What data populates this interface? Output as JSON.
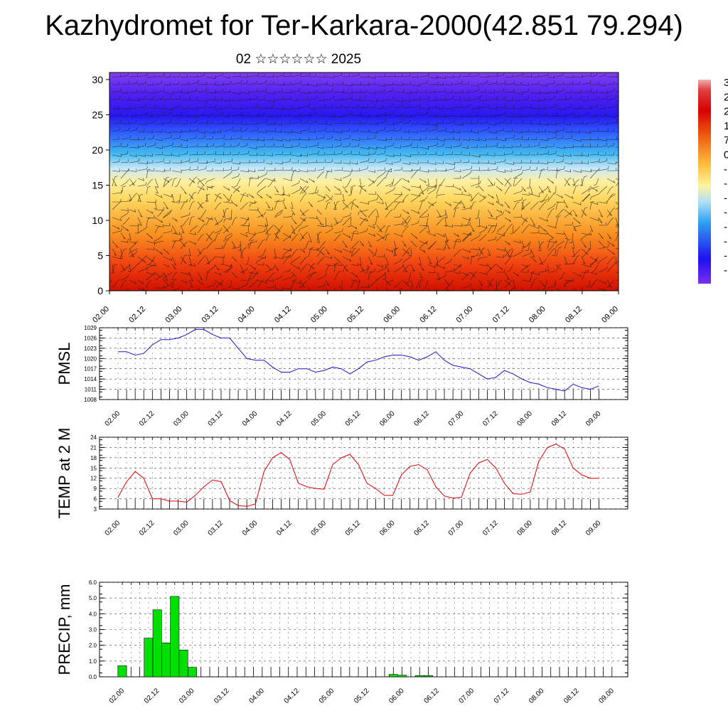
{
  "title": "Kazhydromet for Ter-Karkara-2000(42.851 79.294)",
  "subtitle": "02 ☆☆☆☆☆☆ 2025",
  "colors": {
    "pressure_line": "#1a1acc",
    "temp_line": "#dd0000",
    "precip_bar": "#00e000"
  },
  "chart_data": [
    {
      "type": "heatmap",
      "name_hint": "wind-temperature cross section",
      "x_ticks": [
        "02.00",
        "02.12",
        "03.00",
        "03.12",
        "04.00",
        "04.12",
        "05.00",
        "05.12",
        "06.00",
        "06.12",
        "07.00",
        "07.12",
        "08.00",
        "08.12",
        "09.00"
      ],
      "y_ticks": [
        0,
        5,
        10,
        15,
        20,
        25,
        30
      ],
      "ylim": [
        0,
        31
      ],
      "colorbar_labels_partial": [
        "3",
        "2",
        "2",
        "1",
        "7",
        "0",
        "-",
        "-",
        "-",
        "-",
        "-",
        "-",
        "-",
        "-"
      ]
    },
    {
      "type": "line",
      "ylabel": "PMSL",
      "y_ticks": [
        1008,
        1011,
        1014,
        1017,
        1020,
        1023,
        1026,
        1029
      ],
      "ylim": [
        1008,
        1029
      ],
      "x_ticks": [
        "02.00",
        "02.12",
        "03.00",
        "03.12",
        "04.00",
        "04.12",
        "05.00",
        "05.12",
        "06.00",
        "06.12",
        "07.00",
        "07.12",
        "08.00",
        "08.12",
        "09.00"
      ],
      "x": [
        0,
        1,
        2,
        3,
        4,
        5,
        6,
        7,
        8,
        9,
        10,
        11,
        12,
        13,
        14,
        15,
        16,
        17,
        18,
        19,
        20,
        21,
        22,
        23,
        24,
        25,
        26,
        27,
        28,
        29,
        30,
        31,
        32,
        33,
        34,
        35,
        36,
        37,
        38,
        39,
        40,
        41,
        42,
        43,
        44,
        45,
        46,
        47,
        48,
        49,
        50,
        51,
        52,
        53,
        54,
        55,
        56
      ],
      "values": [
        1022,
        1022,
        1021,
        1021.5,
        1024,
        1025.5,
        1025.5,
        1026,
        1027,
        1028.5,
        1028.5,
        1027,
        1026,
        1026,
        1023,
        1020,
        1019.5,
        1019.5,
        1017.5,
        1016,
        1016,
        1017,
        1017,
        1016,
        1016.5,
        1017.5,
        1017,
        1015.5,
        1017,
        1019,
        1019.5,
        1020.5,
        1021,
        1021,
        1020.5,
        1019.5,
        1020.5,
        1022,
        1019.5,
        1018,
        1017.5,
        1017,
        1015.5,
        1014,
        1014.5,
        1016.5,
        1015.5,
        1014,
        1013,
        1012.5,
        1011.5,
        1011,
        1010.5,
        1012.5,
        1011.5,
        1011,
        1012
      ]
    },
    {
      "type": "line",
      "ylabel": "TEMP at 2 M",
      "y_ticks": [
        3,
        6,
        9,
        12,
        15,
        18,
        21,
        24
      ],
      "ylim": [
        3,
        24
      ],
      "x_ticks": [
        "02.00",
        "02.12",
        "03.00",
        "03.12",
        "04.00",
        "04.12",
        "05.00",
        "05.12",
        "06.00",
        "06.12",
        "07.00",
        "07.12",
        "08.00",
        "08.12",
        "09.00"
      ],
      "x": [
        0,
        1,
        2,
        3,
        4,
        5,
        6,
        7,
        8,
        9,
        10,
        11,
        12,
        13,
        14,
        15,
        16,
        17,
        18,
        19,
        20,
        21,
        22,
        23,
        24,
        25,
        26,
        27,
        28,
        29,
        30,
        31,
        32,
        33,
        34,
        35,
        36,
        37,
        38,
        39,
        40,
        41,
        42,
        43,
        44,
        45,
        46,
        47,
        48,
        49,
        50,
        51,
        52,
        53,
        54,
        55,
        56
      ],
      "values": [
        6.5,
        11,
        14,
        12,
        6,
        6,
        5.3,
        5.3,
        5,
        7,
        9.5,
        11.5,
        11,
        5.5,
        4,
        3.8,
        4.5,
        14,
        18,
        19.5,
        17.5,
        10.5,
        9.5,
        9,
        8.8,
        16,
        18,
        19,
        16,
        10.5,
        9,
        7,
        7,
        13,
        15.5,
        16,
        14.5,
        9.5,
        6.8,
        6.2,
        6.5,
        13.5,
        16.5,
        17.5,
        15,
        10.5,
        7.5,
        7.3,
        8,
        17,
        21,
        22,
        20.5,
        15,
        13,
        12,
        12
      ]
    },
    {
      "type": "bar",
      "ylabel": "PRECIP, mm",
      "y_ticks": [
        "0.0",
        "1.0",
        "2.0",
        "3.0",
        "4.0",
        "5.0",
        "6.0"
      ],
      "ylim": [
        0,
        6
      ],
      "x_ticks": [
        "02.00",
        "02.12",
        "03.00",
        "03.12",
        "04.00",
        "04.12",
        "05.00",
        "05.12",
        "06.00",
        "06.12",
        "07.00",
        "07.12",
        "08.00",
        "08.12",
        "09.00"
      ],
      "x": [
        0,
        3,
        4,
        5,
        6,
        7,
        8,
        31,
        32,
        34,
        35
      ],
      "values": [
        0.7,
        2.45,
        4.25,
        2.15,
        5.1,
        1.7,
        0.6,
        0.15,
        0.1,
        0.08,
        0.08
      ]
    }
  ]
}
